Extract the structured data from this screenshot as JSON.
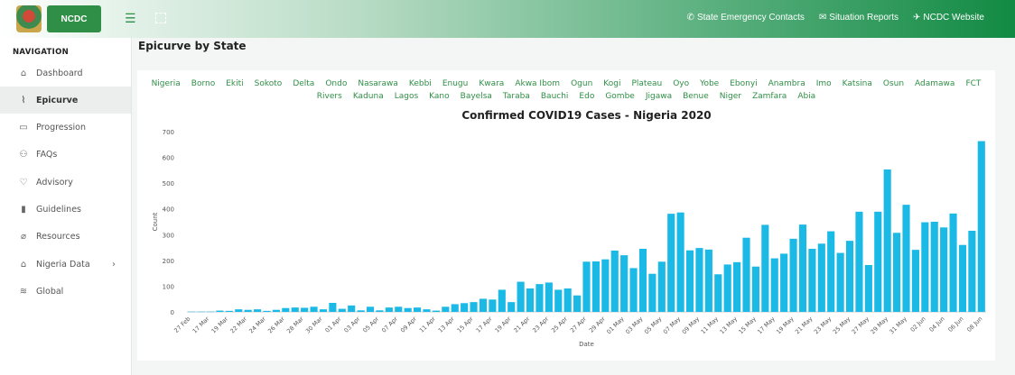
{
  "header": {
    "logo_text": "NCDC",
    "links": [
      {
        "icon": "phone-icon",
        "glyph": "✆",
        "label": "State Emergency Contacts"
      },
      {
        "icon": "mail-icon",
        "glyph": "✉",
        "label": "Situation Reports"
      },
      {
        "icon": "send-icon",
        "glyph": "✈",
        "label": "NCDC Website"
      }
    ]
  },
  "sidebar": {
    "title": "NAVIGATION",
    "items": [
      {
        "label": "Dashboard",
        "icon": "home-icon",
        "glyph": "⌂",
        "active": false
      },
      {
        "label": "Epicurve",
        "icon": "line-chart-icon",
        "glyph": "⌇",
        "active": true
      },
      {
        "label": "Progression",
        "icon": "calendar-icon",
        "glyph": "▭",
        "active": false
      },
      {
        "label": "FAQs",
        "icon": "users-icon",
        "glyph": "⚇",
        "active": false
      },
      {
        "label": "Advisory",
        "icon": "heart-icon",
        "glyph": "♡",
        "active": false
      },
      {
        "label": "Guidelines",
        "icon": "book-icon",
        "glyph": "▮",
        "active": false
      },
      {
        "label": "Resources",
        "icon": "paperclip-icon",
        "glyph": "⌀",
        "active": false
      },
      {
        "label": "Nigeria Data",
        "icon": "home-icon",
        "glyph": "⌂",
        "active": false,
        "caret": "›"
      },
      {
        "label": "Global",
        "icon": "layers-icon",
        "glyph": "≋",
        "active": false
      }
    ]
  },
  "page": {
    "title": "Epicurve by State"
  },
  "states": [
    "Nigeria",
    "Borno",
    "Ekiti",
    "Sokoto",
    "Delta",
    "Ondo",
    "Nasarawa",
    "Kebbi",
    "Enugu",
    "Kwara",
    "Akwa Ibom",
    "Ogun",
    "Kogi",
    "Plateau",
    "Oyo",
    "Yobe",
    "Ebonyi",
    "Anambra",
    "Imo",
    "Katsina",
    "Osun",
    "Adamawa",
    "FCT",
    "Rivers",
    "Kaduna",
    "Lagos",
    "Kano",
    "Bayelsa",
    "Taraba",
    "Bauchi",
    "Edo",
    "Gombe",
    "Jigawa",
    "Benue",
    "Niger",
    "Zamfara",
    "Abia"
  ],
  "colors": {
    "bar": "#1ab9e6",
    "link": "#2f8f46",
    "brand": "#128a43"
  },
  "chart_data": {
    "type": "bar",
    "title": "Confirmed COVID19 Cases - Nigeria 2020",
    "xlabel": "Date",
    "ylabel": "Count",
    "ylim": [
      0,
      700
    ],
    "yticks": [
      0,
      100,
      200,
      300,
      400,
      500,
      600,
      700
    ],
    "grid": false,
    "xtick_labels": [
      "27 Feb",
      "17 Mar",
      "19 Mar",
      "22 Mar",
      "24 Mar",
      "26 Mar",
      "28 Mar",
      "30 Mar",
      "01 Apr",
      "03 Apr",
      "05 Apr",
      "07 Apr",
      "09 Apr",
      "11 Apr",
      "13 Apr",
      "15 Apr",
      "17 Apr",
      "19 Apr",
      "21 Apr",
      "23 Apr",
      "25 Apr",
      "27 Apr",
      "29 Apr",
      "01 May",
      "03 May",
      "05 May",
      "07 May",
      "09 May",
      "11 May",
      "13 May",
      "15 May",
      "17 May",
      "19 May",
      "21 May",
      "23 May",
      "25 May",
      "27 May",
      "29 May",
      "31 May",
      "02 Jun",
      "04 Jun",
      "06 Jun",
      "08 Jun"
    ],
    "values": [
      1,
      1,
      1,
      5,
      4,
      10,
      8,
      10,
      4,
      8,
      15,
      17,
      16,
      20,
      10,
      35,
      12,
      25,
      6,
      20,
      6,
      17,
      20,
      15,
      17,
      10,
      5,
      20,
      30,
      34,
      38,
      51,
      48,
      86,
      38,
      117,
      91,
      108,
      114,
      86,
      91,
      64,
      195,
      196,
      204,
      238,
      220,
      170,
      245,
      148,
      195,
      381,
      386,
      239,
      248,
      242,
      146,
      184,
      193,
      288,
      176,
      338,
      208,
      226,
      284,
      339,
      245,
      265,
      313,
      229,
      276,
      389,
      182,
      389,
      553,
      307,
      416,
      241,
      348,
      350,
      328,
      382,
      260,
      315,
      663
    ]
  }
}
